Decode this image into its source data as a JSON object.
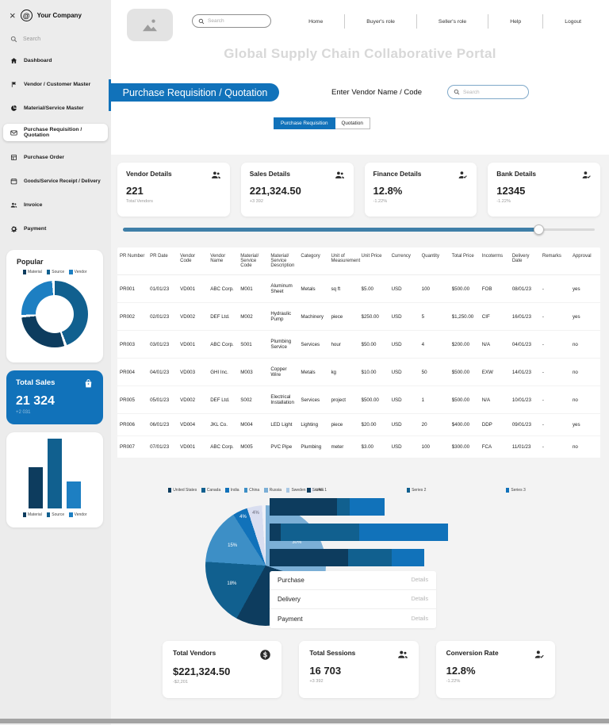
{
  "sidebar": {
    "company": "Your Company",
    "close_glyph": "×",
    "search_placeholder": "Search",
    "items": [
      {
        "label": "Dashboard"
      },
      {
        "label": "Vendor / Customer Master"
      },
      {
        "label": "Material/Service Master"
      },
      {
        "label": "Purchase Requisition / Quotation",
        "active": true
      },
      {
        "label": "Purchase Order"
      },
      {
        "label": "Goods/Service Receipt / Delivery"
      },
      {
        "label": "Invoice"
      },
      {
        "label": "Payment"
      }
    ],
    "popular": {
      "title": "Popular"
    },
    "mini_legend": [
      {
        "label": "Material",
        "color": "#0d3c5e"
      },
      {
        "label": "Source",
        "color": "#11608f"
      },
      {
        "label": "Vendor",
        "color": "#1d7fc2"
      }
    ],
    "total_sales": {
      "title": "Total Sales",
      "value": "21 324",
      "delta": "+2 031"
    }
  },
  "topbar": {
    "search_placeholder": "Search",
    "nav": [
      {
        "label": "Home"
      },
      {
        "label": "Buyer's role"
      },
      {
        "label": "Seller's role"
      },
      {
        "label": "Help"
      },
      {
        "label": "Logout"
      }
    ]
  },
  "page_title": "Global Supply Chain Collaborative Portal",
  "section_header": {
    "title": "Purchase Requisition / Quotation",
    "vendor_label": "Enter Vendor Name / Code",
    "vendor_search_placeholder": "Search"
  },
  "tabs": [
    {
      "label": "Purchase Requisition",
      "active": true
    },
    {
      "label": "Quotation",
      "active": false
    }
  ],
  "stat_cards": [
    {
      "title": "Vendor Details",
      "value": "221",
      "sub": "Total Vendors"
    },
    {
      "title": "Sales Details",
      "value": "221,324.50",
      "sub": "+3 392"
    },
    {
      "title": "Finance Details",
      "value": "12.8%",
      "sub": "-1.22%"
    },
    {
      "title": "Bank Details",
      "value": "12345",
      "sub": "-1.22%"
    }
  ],
  "slider": {
    "value": 88
  },
  "table": {
    "columns": [
      "PR Number",
      "PR Date",
      "Vendor Code",
      "Vendor Name",
      "Material/ Service Code",
      "Material/ Service Description",
      "Category",
      "Unit of Measurement",
      "Unit Price",
      "Currency",
      "Quantity",
      "Total Price",
      "Incoterms",
      "Delivery Date",
      "Remarks",
      "Approval"
    ],
    "rows": [
      [
        "PR001",
        "01/01/23",
        "VD001",
        "ABC Corp.",
        "M001",
        "Aluminum Sheet",
        "Metals",
        "sq ft",
        "$5.00",
        "USD",
        "100",
        "$500.00",
        "FOB",
        "08/01/23",
        "-",
        "yes"
      ],
      [
        "PR002",
        "02/01/23",
        "VD002",
        "DEF Ltd.",
        "M002",
        "Hydraulic Pump",
        "Machinery",
        "piece",
        "$250.00",
        "USD",
        "5",
        "$1,250.00",
        "CIF",
        "16/01/23",
        "-",
        "yes"
      ],
      [
        "PR003",
        "03/01/23",
        "VD001",
        "ABC Corp.",
        "S001",
        "Plumbing Service",
        "Services",
        "hour",
        "$50.00",
        "USD",
        "4",
        "$200.00",
        "N/A",
        "04/01/23",
        "-",
        "no"
      ],
      [
        "PR004",
        "04/01/23",
        "VD003",
        "GHI Inc.",
        "M003",
        "Copper Wire",
        "Metals",
        "kg",
        "$10.00",
        "USD",
        "50",
        "$500.00",
        "EXW",
        "14/01/23",
        "-",
        "no"
      ],
      [
        "PR005",
        "05/01/23",
        "VD002",
        "DEF Ltd.",
        "S002",
        "Electrical Installation",
        "Services",
        "project",
        "$500.00",
        "USD",
        "1",
        "$500.00",
        "N/A",
        "10/01/23",
        "-",
        "no"
      ],
      [
        "PR006",
        "06/01/23",
        "VD004",
        "JKL Co.",
        "M004",
        "LED Light",
        "Lighting",
        "piece",
        "$20.00",
        "USD",
        "20",
        "$400.00",
        "DDP",
        "09/01/23",
        "-",
        "yes"
      ],
      [
        "PR007",
        "07/01/23",
        "VD001",
        "ABC Corp.",
        "M005",
        "PVC Pipe",
        "Plumbing",
        "meter",
        "$3.00",
        "USD",
        "100",
        "$300.00",
        "FCA",
        "11/01/23",
        "-",
        "no"
      ]
    ]
  },
  "chart_data": [
    {
      "id": "sidebar-donut",
      "type": "pie",
      "title": "Popular",
      "slices": [
        {
          "label": "Source",
          "value": 44,
          "color": "#11608f"
        },
        {
          "label": "Material",
          "value": 28,
          "color": "#0d3c5e"
        },
        {
          "label": "Vendor",
          "value": 24,
          "color": "#1d7fc2"
        }
      ],
      "gap_pct": 1.33,
      "legend": [
        "Material",
        "Source",
        "Vendor"
      ],
      "legend_position": "top"
    },
    {
      "id": "sidebar-bars",
      "type": "bar",
      "categories": [
        "Material",
        "Source",
        "Vendor"
      ],
      "values": [
        59,
        100,
        39
      ],
      "colors": [
        "#0d3c5e",
        "#11608f",
        "#1d7fc2"
      ],
      "legend_position": "bottom"
    },
    {
      "id": "country-pie",
      "type": "pie",
      "legend": [
        {
          "label": "United States",
          "color": "#0d3c5e"
        },
        {
          "label": "Canada",
          "color": "#11608f"
        },
        {
          "label": "India",
          "color": "#1172ba"
        },
        {
          "label": "China",
          "color": "#3d8fc6"
        },
        {
          "label": "Russia",
          "color": "#7bafd6"
        },
        {
          "label": "Sweden",
          "color": "#a9c8e4"
        },
        {
          "label": "UAE",
          "color": "#e8ebf5"
        }
      ],
      "slices": [
        {
          "label": "30%",
          "value": 30,
          "color": "#7bafd6"
        },
        {
          "label": "28%",
          "value": 28,
          "color": "#0d3c5e"
        },
        {
          "label": "18%",
          "value": 18,
          "color": "#11608f"
        },
        {
          "label": "15%",
          "value": 15,
          "color": "#3d8fc6"
        },
        {
          "label": "4%",
          "value": 4,
          "color": "#1172ba"
        },
        {
          "label": "4%",
          "value": 4,
          "color": "#d9def0"
        },
        {
          "label": "",
          "value": 1,
          "color": "#eef0f7"
        }
      ],
      "legend_position": "top"
    },
    {
      "id": "stacked-bars",
      "type": "stacked-bar-horizontal",
      "series": [
        {
          "name": "Series 1",
          "color": "#0d3c5e"
        },
        {
          "name": "Series 2",
          "color": "#11608f"
        },
        {
          "name": "Series 3",
          "color": "#1172ba"
        }
      ],
      "bars": [
        [
          37,
          7,
          19
        ],
        [
          6,
          43,
          49
        ],
        [
          43,
          24,
          18
        ]
      ]
    }
  ],
  "links": [
    {
      "label": "Purchase",
      "action": "Details"
    },
    {
      "label": "Delivery",
      "action": "Details"
    },
    {
      "label": "Payment",
      "action": "Details"
    }
  ],
  "bottom_cards": [
    {
      "title": "Total Vendors",
      "value": "$221,324.50",
      "sub": "-$2,201"
    },
    {
      "title": "Total Sessions",
      "value": "16 703",
      "sub": "+3 392"
    },
    {
      "title": "Conversion Rate",
      "value": "12.8%",
      "sub": "-1.22%"
    }
  ]
}
